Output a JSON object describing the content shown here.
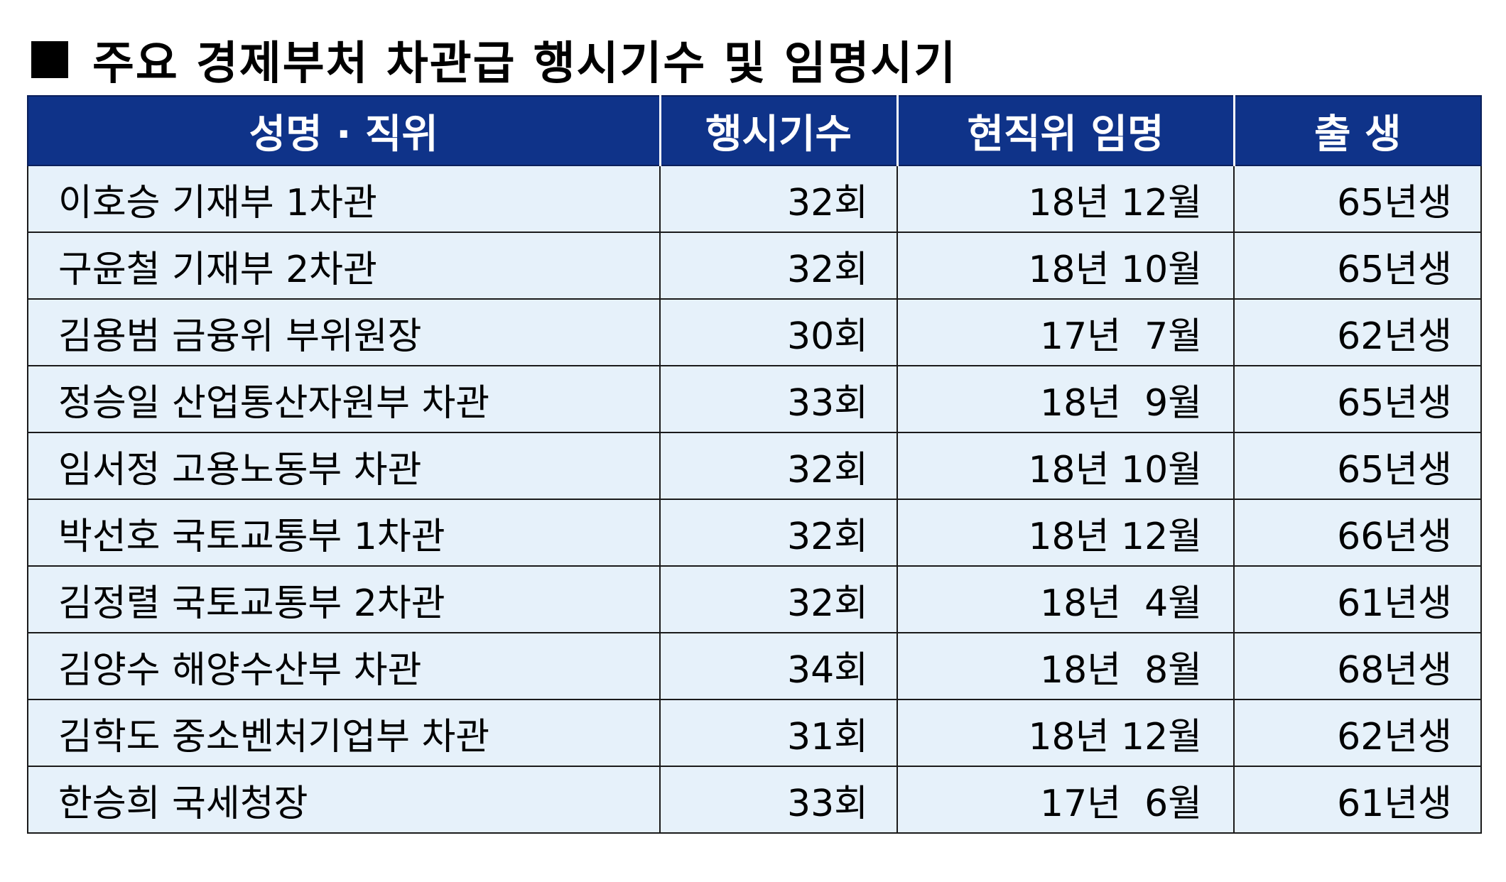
{
  "title": "주요 경제부처 차관급 행시기수 및 임명시기",
  "columns": [
    "성명 · 직위",
    "행시기수",
    "현직위 임명",
    "출 생"
  ],
  "rows": [
    {
      "name": "이호승 기재부 1차관",
      "exam": "32회",
      "appointed": "18년 12월",
      "born": "65년생"
    },
    {
      "name": "구윤철 기재부 2차관",
      "exam": "32회",
      "appointed": "18년 10월",
      "born": "65년생"
    },
    {
      "name": "김용범 금융위 부위원장",
      "exam": "30회",
      "appointed": "17년  7월",
      "born": "62년생"
    },
    {
      "name": "정승일 산업통산자원부 차관",
      "exam": "33회",
      "appointed": "18년  9월",
      "born": "65년생"
    },
    {
      "name": "임서정 고용노동부 차관",
      "exam": "32회",
      "appointed": "18년 10월",
      "born": "65년생"
    },
    {
      "name": "박선호 국토교통부 1차관",
      "exam": "32회",
      "appointed": "18년 12월",
      "born": "66년생"
    },
    {
      "name": "김정렬 국토교통부 2차관",
      "exam": "32회",
      "appointed": "18년  4월",
      "born": "61년생"
    },
    {
      "name": "김양수 해양수산부 차관",
      "exam": "34회",
      "appointed": "18년  8월",
      "born": "68년생"
    },
    {
      "name": "김학도 중소벤처기업부 차관",
      "exam": "31회",
      "appointed": "18년 12월",
      "born": "62년생"
    },
    {
      "name": "한승희 국세청장",
      "exam": "33회",
      "appointed": "17년  6월",
      "born": "61년생"
    }
  ],
  "colors": {
    "header_bg": "#0f3389",
    "row_bg": "#e6f1fa",
    "header_text": "#ffffff"
  }
}
